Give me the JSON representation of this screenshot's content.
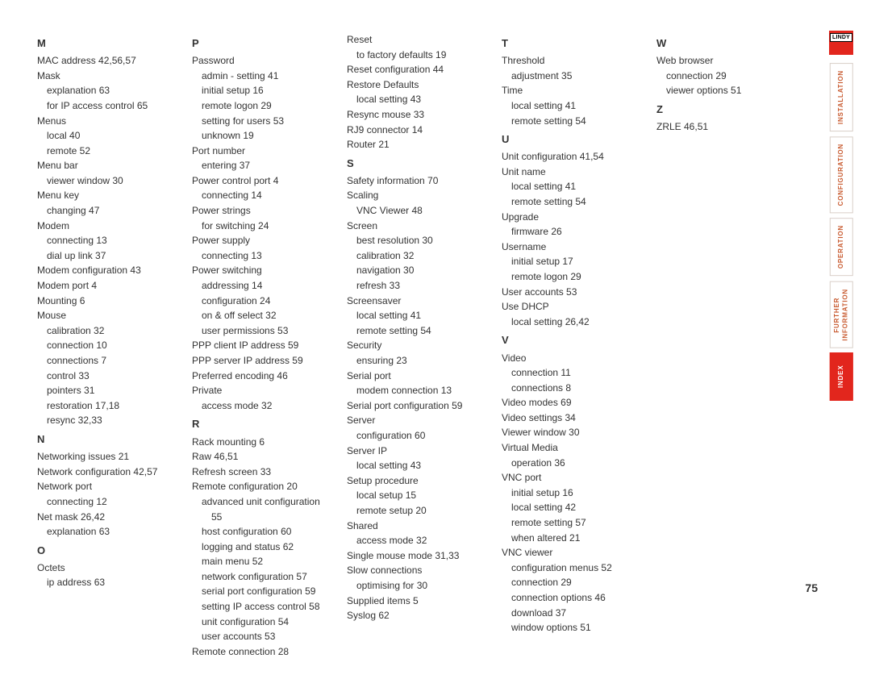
{
  "page_number": "75",
  "logo_text": "LINDY",
  "nav": [
    {
      "label": "INSTALLATION",
      "active": false
    },
    {
      "label": "CONFIGURATION",
      "active": false
    },
    {
      "label": "OPERATION",
      "active": false
    },
    {
      "label": "FURTHER\nINFORMATION",
      "active": false
    },
    {
      "label": "INDEX",
      "active": true
    }
  ],
  "columns": [
    [
      {
        "t": "letter",
        "text": "M"
      },
      {
        "t": "entry",
        "text": "MAC address  42,56,57"
      },
      {
        "t": "entry",
        "text": "Mask"
      },
      {
        "t": "indent1",
        "text": "explanation  63"
      },
      {
        "t": "indent1",
        "text": "for IP access control  65"
      },
      {
        "t": "entry",
        "text": "Menus"
      },
      {
        "t": "indent1",
        "text": "local  40"
      },
      {
        "t": "indent1",
        "text": "remote  52"
      },
      {
        "t": "entry",
        "text": "Menu bar"
      },
      {
        "t": "indent1",
        "text": "viewer window  30"
      },
      {
        "t": "entry",
        "text": "Menu key"
      },
      {
        "t": "indent1",
        "text": "changing  47"
      },
      {
        "t": "entry",
        "text": "Modem"
      },
      {
        "t": "indent1",
        "text": "connecting  13"
      },
      {
        "t": "indent1",
        "text": "dial up link  37"
      },
      {
        "t": "entry",
        "text": "Modem configuration  43"
      },
      {
        "t": "entry",
        "text": "Modem port  4"
      },
      {
        "t": "entry",
        "text": "Mounting  6"
      },
      {
        "t": "entry",
        "text": "Mouse"
      },
      {
        "t": "indent1",
        "text": "calibration  32"
      },
      {
        "t": "indent1",
        "text": "connection  10"
      },
      {
        "t": "indent1",
        "text": "connections  7"
      },
      {
        "t": "indent1",
        "text": "control  33"
      },
      {
        "t": "indent1",
        "text": "pointers  31"
      },
      {
        "t": "indent1",
        "text": "restoration  17,18"
      },
      {
        "t": "indent1",
        "text": "resync  32,33"
      },
      {
        "t": "letter",
        "text": "N"
      },
      {
        "t": "entry",
        "text": "Networking issues  21"
      },
      {
        "t": "entry",
        "text": "Network configuration  42,57"
      },
      {
        "t": "entry",
        "text": "Network port"
      },
      {
        "t": "indent1",
        "text": "connecting  12"
      },
      {
        "t": "entry",
        "text": "Net mask  26,42"
      },
      {
        "t": "indent1",
        "text": "explanation  63"
      },
      {
        "t": "letter",
        "text": "O"
      },
      {
        "t": "entry",
        "text": "Octets"
      },
      {
        "t": "indent1",
        "text": "ip address  63"
      }
    ],
    [
      {
        "t": "letter",
        "text": "P"
      },
      {
        "t": "entry",
        "text": "Password"
      },
      {
        "t": "indent1",
        "text": "admin - setting  41"
      },
      {
        "t": "indent1",
        "text": "initial setup  16"
      },
      {
        "t": "indent1",
        "text": "remote logon  29"
      },
      {
        "t": "indent1",
        "text": "setting for users  53"
      },
      {
        "t": "indent1",
        "text": "unknown  19"
      },
      {
        "t": "entry",
        "text": "Port number"
      },
      {
        "t": "indent1",
        "text": "entering  37"
      },
      {
        "t": "entry",
        "text": "Power control port  4"
      },
      {
        "t": "indent1",
        "text": "connecting  14"
      },
      {
        "t": "entry",
        "text": "Power strings"
      },
      {
        "t": "indent1",
        "text": "for switching  24"
      },
      {
        "t": "entry",
        "text": "Power supply"
      },
      {
        "t": "indent1",
        "text": "connecting  13"
      },
      {
        "t": "entry",
        "text": "Power switching"
      },
      {
        "t": "indent1",
        "text": "addressing  14"
      },
      {
        "t": "indent1",
        "text": "configuration  24"
      },
      {
        "t": "indent1",
        "text": "on & off select  32"
      },
      {
        "t": "indent1",
        "text": "user permissions  53"
      },
      {
        "t": "entry",
        "text": "PPP client IP address  59"
      },
      {
        "t": "entry",
        "text": "PPP server IP address  59"
      },
      {
        "t": "entry",
        "text": "Preferred encoding  46"
      },
      {
        "t": "entry",
        "text": "Private"
      },
      {
        "t": "indent1",
        "text": "access mode  32"
      },
      {
        "t": "letter",
        "text": "R"
      },
      {
        "t": "entry",
        "text": "Rack mounting  6"
      },
      {
        "t": "entry",
        "text": "Raw  46,51"
      },
      {
        "t": "entry",
        "text": "Refresh screen  33"
      },
      {
        "t": "entry",
        "text": "Remote configuration  20"
      },
      {
        "t": "indent1",
        "text": "advanced unit configuration"
      },
      {
        "t": "indent2",
        "text": "55"
      },
      {
        "t": "indent1",
        "text": "host configuration  60"
      },
      {
        "t": "indent1",
        "text": "logging and status  62"
      },
      {
        "t": "indent1",
        "text": "main menu  52"
      },
      {
        "t": "indent1",
        "text": "network configuration  57"
      },
      {
        "t": "indent1",
        "text": "serial port configuration  59"
      },
      {
        "t": "indent1",
        "text": "setting IP access control  58"
      },
      {
        "t": "indent1",
        "text": "unit configuration  54"
      },
      {
        "t": "indent1",
        "text": "user accounts  53"
      },
      {
        "t": "entry",
        "text": "Remote connection  28"
      }
    ],
    [
      {
        "t": "entry",
        "text": "Reset"
      },
      {
        "t": "indent1",
        "text": "to factory defaults  19"
      },
      {
        "t": "entry",
        "text": "Reset configuration  44"
      },
      {
        "t": "entry",
        "text": "Restore Defaults"
      },
      {
        "t": "indent1",
        "text": "local setting  43"
      },
      {
        "t": "entry",
        "text": "Resync mouse  33"
      },
      {
        "t": "entry",
        "text": "RJ9 connector  14"
      },
      {
        "t": "entry",
        "text": "Router  21"
      },
      {
        "t": "letter",
        "text": "S"
      },
      {
        "t": "entry",
        "text": "Safety information  70"
      },
      {
        "t": "entry",
        "text": "Scaling"
      },
      {
        "t": "indent1",
        "text": "VNC Viewer  48"
      },
      {
        "t": "entry",
        "text": "Screen"
      },
      {
        "t": "indent1",
        "text": "best resolution  30"
      },
      {
        "t": "indent1",
        "text": "calibration  32"
      },
      {
        "t": "indent1",
        "text": "navigation  30"
      },
      {
        "t": "indent1",
        "text": "refresh  33"
      },
      {
        "t": "entry",
        "text": "Screensaver"
      },
      {
        "t": "indent1",
        "text": "local setting  41"
      },
      {
        "t": "indent1",
        "text": "remote setting  54"
      },
      {
        "t": "entry",
        "text": "Security"
      },
      {
        "t": "indent1",
        "text": "ensuring  23"
      },
      {
        "t": "entry",
        "text": "Serial port"
      },
      {
        "t": "indent1",
        "text": "modem connection  13"
      },
      {
        "t": "entry",
        "text": "Serial port configuration  59"
      },
      {
        "t": "entry",
        "text": "Server"
      },
      {
        "t": "indent1",
        "text": "configuration  60"
      },
      {
        "t": "entry",
        "text": "Server IP"
      },
      {
        "t": "indent1",
        "text": "local setting  43"
      },
      {
        "t": "entry",
        "text": "Setup procedure"
      },
      {
        "t": "indent1",
        "text": "local setup  15"
      },
      {
        "t": "indent1",
        "text": "remote setup  20"
      },
      {
        "t": "entry",
        "text": "Shared"
      },
      {
        "t": "indent1",
        "text": "access mode  32"
      },
      {
        "t": "entry",
        "text": "Single mouse mode  31,33"
      },
      {
        "t": "entry",
        "text": "Slow connections"
      },
      {
        "t": "indent1",
        "text": "optimising for  30"
      },
      {
        "t": "entry",
        "text": "Supplied items  5"
      },
      {
        "t": "entry",
        "text": "Syslog  62"
      }
    ],
    [
      {
        "t": "letter",
        "text": "T"
      },
      {
        "t": "entry",
        "text": "Threshold"
      },
      {
        "t": "indent1",
        "text": "adjustment  35"
      },
      {
        "t": "entry",
        "text": "Time"
      },
      {
        "t": "indent1",
        "text": "local setting  41"
      },
      {
        "t": "indent1",
        "text": "remote setting  54"
      },
      {
        "t": "letter",
        "text": "U"
      },
      {
        "t": "entry",
        "text": "Unit configuration  41,54"
      },
      {
        "t": "entry",
        "text": "Unit name"
      },
      {
        "t": "indent1",
        "text": "local setting  41"
      },
      {
        "t": "indent1",
        "text": "remote setting  54"
      },
      {
        "t": "entry",
        "text": "Upgrade"
      },
      {
        "t": "indent1",
        "text": "firmware  26"
      },
      {
        "t": "entry",
        "text": "Username"
      },
      {
        "t": "indent1",
        "text": "initial setup  17"
      },
      {
        "t": "indent1",
        "text": "remote logon  29"
      },
      {
        "t": "entry",
        "text": "User accounts  53"
      },
      {
        "t": "entry",
        "text": "Use DHCP"
      },
      {
        "t": "indent1",
        "text": "local setting  26,42"
      },
      {
        "t": "letter",
        "text": "V"
      },
      {
        "t": "entry",
        "text": "Video"
      },
      {
        "t": "indent1",
        "text": "connection  11"
      },
      {
        "t": "indent1",
        "text": "connections  8"
      },
      {
        "t": "entry",
        "text": "Video modes  69"
      },
      {
        "t": "entry",
        "text": "Video settings  34"
      },
      {
        "t": "entry",
        "text": "Viewer window  30"
      },
      {
        "t": "entry",
        "text": "Virtual Media"
      },
      {
        "t": "indent1",
        "text": "operation  36"
      },
      {
        "t": "entry",
        "text": "VNC port"
      },
      {
        "t": "indent1",
        "text": "initial setup  16"
      },
      {
        "t": "indent1",
        "text": "local setting  42"
      },
      {
        "t": "indent1",
        "text": "remote setting  57"
      },
      {
        "t": "indent1",
        "text": "when altered  21"
      },
      {
        "t": "entry",
        "text": "VNC viewer"
      },
      {
        "t": "indent1",
        "text": "configuration menus  52"
      },
      {
        "t": "indent1",
        "text": "connection  29"
      },
      {
        "t": "indent1",
        "text": "connection options  46"
      },
      {
        "t": "indent1",
        "text": "download  37"
      },
      {
        "t": "indent1",
        "text": "window options  51"
      }
    ],
    [
      {
        "t": "letter",
        "text": "W"
      },
      {
        "t": "entry",
        "text": "Web browser"
      },
      {
        "t": "indent1",
        "text": "connection  29"
      },
      {
        "t": "indent1",
        "text": "viewer options  51"
      },
      {
        "t": "letter",
        "text": "Z"
      },
      {
        "t": "entry",
        "text": "ZRLE  46,51"
      }
    ]
  ]
}
